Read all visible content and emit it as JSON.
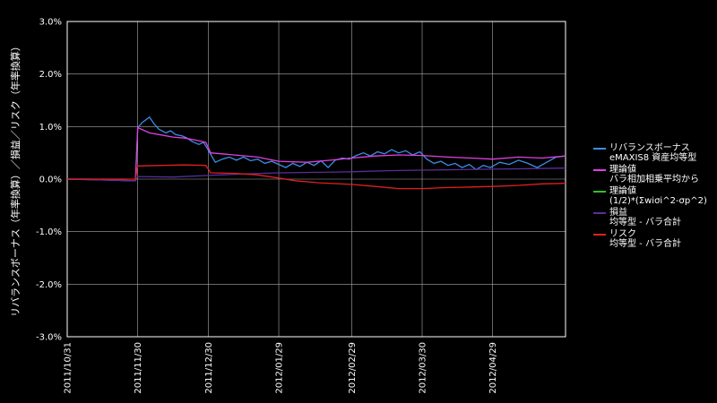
{
  "chart_data": {
    "type": "line",
    "ylabel": "リバランスボーナス（年率換算）／損益／リスク（年率換算）",
    "ylim": [
      -3.0,
      3.0
    ],
    "yticks": [
      "3.0%",
      "2.0%",
      "1.0%",
      "0.0%",
      "-1.0%",
      "-2.0%",
      "-3.0%"
    ],
    "xlim": [
      "2011-10-31",
      "2012-05-30"
    ],
    "xticks": [
      "2011/10/31",
      "2011/11/30",
      "2011/12/30",
      "2012/01/29",
      "2012/02/29",
      "2012/03/30",
      "2012/04/29"
    ],
    "grid": true,
    "legend_position": "right",
    "series": [
      {
        "name_lines": [
          "リバランスボーナス",
          "eMAXIS8 資産均等型"
        ],
        "color": "#3a8ee6",
        "points": [
          [
            "2011-10-31",
            0.0
          ],
          [
            "2011-11-10",
            0.0
          ],
          [
            "2011-11-20",
            -0.02
          ],
          [
            "2011-11-29",
            -0.03
          ],
          [
            "2011-11-30",
            0.98
          ],
          [
            "2011-12-02",
            1.08
          ],
          [
            "2011-12-05",
            1.18
          ],
          [
            "2011-12-07",
            1.05
          ],
          [
            "2011-12-09",
            0.95
          ],
          [
            "2011-12-12",
            0.88
          ],
          [
            "2011-12-14",
            0.92
          ],
          [
            "2011-12-16",
            0.85
          ],
          [
            "2011-12-19",
            0.82
          ],
          [
            "2011-12-21",
            0.78
          ],
          [
            "2011-12-23",
            0.72
          ],
          [
            "2011-12-26",
            0.66
          ],
          [
            "2011-12-28",
            0.7
          ],
          [
            "2011-12-30",
            0.55
          ],
          [
            "2012-01-02",
            0.32
          ],
          [
            "2012-01-05",
            0.38
          ],
          [
            "2012-01-08",
            0.42
          ],
          [
            "2012-01-11",
            0.36
          ],
          [
            "2012-01-14",
            0.42
          ],
          [
            "2012-01-17",
            0.35
          ],
          [
            "2012-01-20",
            0.38
          ],
          [
            "2012-01-23",
            0.3
          ],
          [
            "2012-01-26",
            0.34
          ],
          [
            "2012-01-29",
            0.28
          ],
          [
            "2012-02-01",
            0.22
          ],
          [
            "2012-02-04",
            0.3
          ],
          [
            "2012-02-07",
            0.24
          ],
          [
            "2012-02-10",
            0.32
          ],
          [
            "2012-02-13",
            0.26
          ],
          [
            "2012-02-16",
            0.35
          ],
          [
            "2012-02-19",
            0.22
          ],
          [
            "2012-02-22",
            0.36
          ],
          [
            "2012-02-25",
            0.4
          ],
          [
            "2012-02-28",
            0.38
          ],
          [
            "2012-03-02",
            0.45
          ],
          [
            "2012-03-05",
            0.5
          ],
          [
            "2012-03-08",
            0.44
          ],
          [
            "2012-03-11",
            0.52
          ],
          [
            "2012-03-14",
            0.48
          ],
          [
            "2012-03-17",
            0.56
          ],
          [
            "2012-03-20",
            0.5
          ],
          [
            "2012-03-23",
            0.54
          ],
          [
            "2012-03-26",
            0.46
          ],
          [
            "2012-03-29",
            0.52
          ],
          [
            "2012-04-01",
            0.38
          ],
          [
            "2012-04-04",
            0.3
          ],
          [
            "2012-04-07",
            0.34
          ],
          [
            "2012-04-10",
            0.26
          ],
          [
            "2012-04-13",
            0.3
          ],
          [
            "2012-04-16",
            0.22
          ],
          [
            "2012-04-19",
            0.28
          ],
          [
            "2012-04-22",
            0.18
          ],
          [
            "2012-04-25",
            0.26
          ],
          [
            "2012-04-28",
            0.22
          ],
          [
            "2012-05-02",
            0.32
          ],
          [
            "2012-05-06",
            0.28
          ],
          [
            "2012-05-10",
            0.36
          ],
          [
            "2012-05-14",
            0.3
          ],
          [
            "2012-05-18",
            0.22
          ],
          [
            "2012-05-22",
            0.32
          ],
          [
            "2012-05-26",
            0.42
          ],
          [
            "2012-05-30",
            0.44
          ]
        ]
      },
      {
        "name_lines": [
          "理論値",
          "バラ相加相乗平均から"
        ],
        "color": "#e040e0",
        "points": [
          [
            "2011-10-31",
            0.0
          ],
          [
            "2011-11-29",
            -0.03
          ],
          [
            "2011-11-30",
            0.98
          ],
          [
            "2011-12-05",
            0.88
          ],
          [
            "2011-12-10",
            0.84
          ],
          [
            "2011-12-15",
            0.8
          ],
          [
            "2011-12-20",
            0.78
          ],
          [
            "2011-12-25",
            0.74
          ],
          [
            "2011-12-29",
            0.7
          ],
          [
            "2011-12-31",
            0.5
          ],
          [
            "2012-01-10",
            0.46
          ],
          [
            "2012-01-20",
            0.42
          ],
          [
            "2012-01-29",
            0.34
          ],
          [
            "2012-02-10",
            0.32
          ],
          [
            "2012-02-20",
            0.36
          ],
          [
            "2012-02-29",
            0.4
          ],
          [
            "2012-03-10",
            0.44
          ],
          [
            "2012-03-20",
            0.46
          ],
          [
            "2012-03-30",
            0.45
          ],
          [
            "2012-04-10",
            0.42
          ],
          [
            "2012-04-20",
            0.4
          ],
          [
            "2012-04-29",
            0.38
          ],
          [
            "2012-05-10",
            0.42
          ],
          [
            "2012-05-20",
            0.4
          ],
          [
            "2012-05-30",
            0.44
          ]
        ]
      },
      {
        "name_lines": [
          "理論値",
          "(1/2)*(Σwiσi^2-σp^2)"
        ],
        "color": "#2fbf2f",
        "points": []
      },
      {
        "name_lines": [
          "損益",
          "均等型 - バラ合計"
        ],
        "color": "#5a2e9a",
        "points": [
          [
            "2011-10-31",
            0.0
          ],
          [
            "2011-11-20",
            -0.02
          ],
          [
            "2011-11-29",
            -0.03
          ],
          [
            "2011-11-30",
            0.05
          ],
          [
            "2011-12-15",
            0.04
          ],
          [
            "2011-12-30",
            0.07
          ],
          [
            "2012-01-15",
            0.1
          ],
          [
            "2012-01-29",
            0.12
          ],
          [
            "2012-02-15",
            0.13
          ],
          [
            "2012-02-29",
            0.14
          ],
          [
            "2012-03-15",
            0.16
          ],
          [
            "2012-03-30",
            0.17
          ],
          [
            "2012-04-15",
            0.18
          ],
          [
            "2012-04-29",
            0.19
          ],
          [
            "2012-05-15",
            0.2
          ],
          [
            "2012-05-30",
            0.21
          ]
        ]
      },
      {
        "name_lines": [
          "リスク",
          "均等型 - バラ合計"
        ],
        "color": "#e02020",
        "points": [
          [
            "2011-10-31",
            0.0
          ],
          [
            "2011-11-29",
            0.0
          ],
          [
            "2011-11-30",
            0.25
          ],
          [
            "2011-12-10",
            0.26
          ],
          [
            "2011-12-20",
            0.27
          ],
          [
            "2011-12-29",
            0.26
          ],
          [
            "2011-12-31",
            0.12
          ],
          [
            "2012-01-10",
            0.11
          ],
          [
            "2012-01-20",
            0.08
          ],
          [
            "2012-01-29",
            0.02
          ],
          [
            "2012-02-05",
            -0.03
          ],
          [
            "2012-02-15",
            -0.07
          ],
          [
            "2012-02-29",
            -0.1
          ],
          [
            "2012-03-10",
            -0.14
          ],
          [
            "2012-03-20",
            -0.18
          ],
          [
            "2012-03-30",
            -0.18
          ],
          [
            "2012-04-10",
            -0.16
          ],
          [
            "2012-04-20",
            -0.15
          ],
          [
            "2012-04-29",
            -0.14
          ],
          [
            "2012-05-10",
            -0.12
          ],
          [
            "2012-05-20",
            -0.09
          ],
          [
            "2012-05-30",
            -0.08
          ]
        ]
      }
    ]
  }
}
